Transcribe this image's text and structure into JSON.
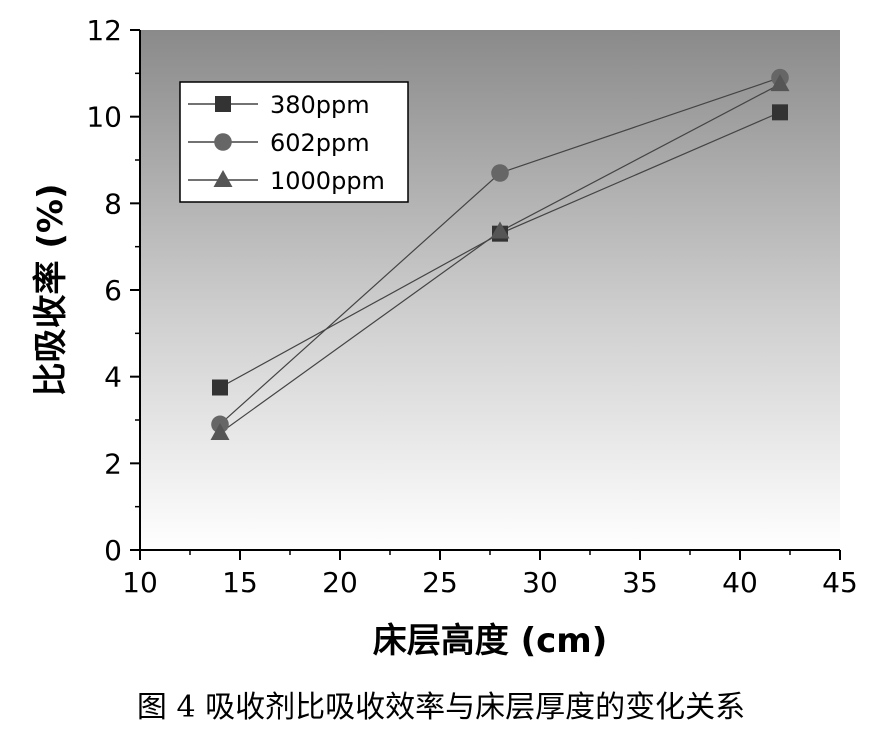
{
  "chart_data": {
    "type": "line",
    "xlabel": "床层高度 (cm)",
    "ylabel": "比吸收率 (%)",
    "xlim": [
      10,
      45
    ],
    "ylim": [
      0,
      12
    ],
    "xticks": [
      10,
      15,
      20,
      25,
      30,
      35,
      40,
      45
    ],
    "yticks": [
      0,
      2,
      4,
      6,
      8,
      10,
      12
    ],
    "legend_position": "top-left",
    "grid": false,
    "background": "vertical gradient, dark gray top to white bottom",
    "x": [
      14,
      28,
      42
    ],
    "series": [
      {
        "name": "380ppm",
        "marker": "square",
        "color": "#333333",
        "values": [
          3.75,
          7.3,
          10.1
        ]
      },
      {
        "name": "602ppm",
        "marker": "circle",
        "color": "#666666",
        "values": [
          2.9,
          8.7,
          10.9
        ]
      },
      {
        "name": "1000ppm",
        "marker": "triangle",
        "color": "#555555",
        "values": [
          2.7,
          7.35,
          10.75
        ]
      }
    ]
  },
  "caption": "图 4  吸收剂比吸收效率与床层厚度的变化关系"
}
